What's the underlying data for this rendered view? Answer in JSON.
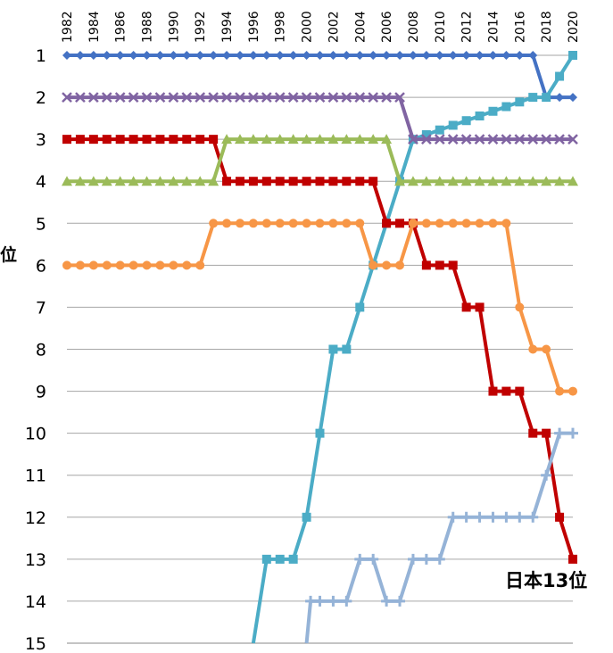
{
  "chart_data": {
    "type": "line",
    "title": "",
    "ylabel": "位",
    "xlabel": "",
    "annotation": "日本13位",
    "y_axis_inverted": true,
    "ylim": [
      1,
      15
    ],
    "xlim": [
      1982,
      2020
    ],
    "x_tick_labels": [
      "1982",
      "1984",
      "1986",
      "1988",
      "1990",
      "1992",
      "1994",
      "1996",
      "1998",
      "2000",
      "2002",
      "2004",
      "2006",
      "2008",
      "2010",
      "2012",
      "2014",
      "2016",
      "2018",
      "2020"
    ],
    "y_tick_labels": [
      "1",
      "2",
      "3",
      "4",
      "5",
      "6",
      "7",
      "8",
      "9",
      "10",
      "11",
      "12",
      "13",
      "14",
      "15"
    ],
    "grid": "horizontal",
    "legend": "none",
    "series": [
      {
        "color": "#4472C4",
        "marker": "diamond",
        "x": [
          1982,
          2017,
          2018,
          2020
        ],
        "values": [
          1,
          1,
          2,
          2
        ]
      },
      {
        "color": "#4BACC6",
        "marker": "square",
        "x": [
          1996,
          1997,
          1998,
          1999,
          2000,
          2001,
          2002,
          2003,
          2004,
          2005,
          2006,
          2007,
          2008,
          2017,
          2018,
          2020
        ],
        "values": [
          15,
          13,
          13,
          13,
          12,
          10,
          8,
          8,
          7,
          6,
          5,
          4,
          3,
          2,
          2,
          1
        ],
        "ticks_from": 1997
      },
      {
        "color": "#8064A2",
        "marker": "x",
        "x": [
          1982,
          2007,
          2008,
          2020
        ],
        "values": [
          2,
          2,
          3,
          3
        ]
      },
      {
        "color": "#C00000",
        "marker": "square",
        "x": [
          1982,
          1993,
          1994,
          2005,
          2006,
          2008,
          2009,
          2011,
          2012,
          2013,
          2014,
          2016,
          2017,
          2018,
          2019,
          2020
        ],
        "values": [
          3,
          3,
          4,
          4,
          5,
          5,
          6,
          6,
          7,
          7,
          9,
          9,
          10,
          10,
          12,
          13
        ]
      },
      {
        "color": "#9BBB59",
        "marker": "triangle",
        "x": [
          1982,
          1993,
          1994,
          2006,
          2007,
          2020
        ],
        "values": [
          4,
          4,
          3,
          3,
          4,
          4
        ]
      },
      {
        "color": "#F79646",
        "marker": "circle",
        "x": [
          1982,
          1992,
          1993,
          2004,
          2005,
          2007,
          2008,
          2015,
          2016,
          2017,
          2018,
          2019,
          2020
        ],
        "values": [
          6,
          6,
          5,
          5,
          6,
          6,
          5,
          5,
          7,
          8,
          8,
          9,
          9
        ]
      },
      {
        "color": "#95B3D7",
        "marker": "plus",
        "x": [
          2000,
          2000.3,
          2001,
          2002,
          2003,
          2004,
          2005,
          2006,
          2007,
          2008,
          2009,
          2010,
          2011,
          2012,
          2013,
          2014,
          2015,
          2016,
          2017,
          2018,
          2019,
          2020
        ],
        "values": [
          15,
          14,
          14,
          14,
          14,
          13,
          13,
          14,
          14,
          13,
          13,
          13,
          12,
          12,
          12,
          12,
          12,
          12,
          12,
          11,
          10,
          10
        ],
        "ticks_from": 2000.3
      }
    ]
  }
}
